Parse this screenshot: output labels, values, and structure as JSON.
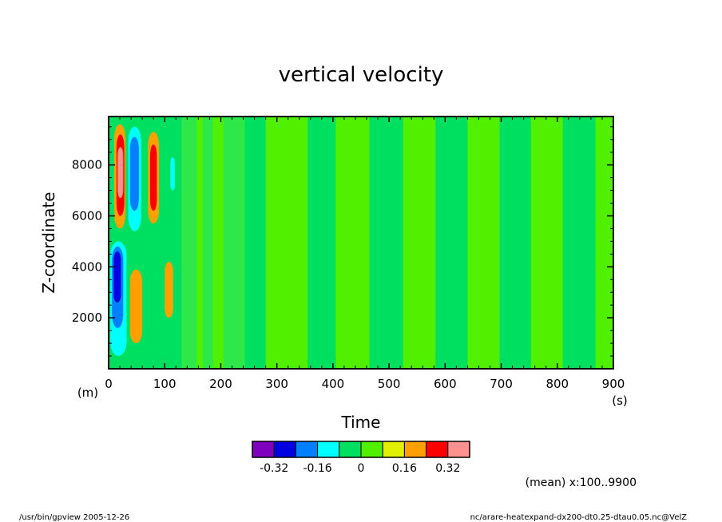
{
  "chart_data": {
    "type": "heatmap",
    "title": "vertical velocity",
    "xlabel": "Time",
    "ylabel": "Z-coordinate",
    "x_unit": "(s)",
    "y_unit": "(m)",
    "xlim": [
      0,
      900
    ],
    "ylim": [
      0,
      9900
    ],
    "x_ticks": [
      0,
      100,
      200,
      300,
      400,
      500,
      600,
      700,
      800,
      900
    ],
    "y_ticks": [
      2000,
      4000,
      6000,
      8000
    ],
    "colorbar": {
      "levels": [
        -0.4,
        -0.32,
        -0.24,
        -0.16,
        -0.08,
        0,
        0.08,
        0.16,
        0.24,
        0.32,
        0.4
      ],
      "labeled_ticks": [
        "-0.32",
        "-0.16",
        "0",
        "0.16",
        "0.32"
      ],
      "colors": [
        "#8000c0",
        "#0000e0",
        "#0080ff",
        "#00ffff",
        "#00e060",
        "#50f000",
        "#e0f000",
        "#ffa000",
        "#ff0000",
        "#ff9090"
      ]
    },
    "x_bands": [
      {
        "x0": 130,
        "x1": 157,
        "color": "#2ee84a"
      },
      {
        "x0": 157,
        "x1": 168,
        "color": "#50f000"
      },
      {
        "x0": 168,
        "x1": 186,
        "color": "#2ee84a"
      },
      {
        "x0": 186,
        "x1": 205,
        "color": "#50f000"
      },
      {
        "x0": 205,
        "x1": 243,
        "color": "#2ee84a"
      },
      {
        "x0": 243,
        "x1": 280,
        "color": "#00e060"
      },
      {
        "x0": 280,
        "x1": 355,
        "color": "#50f000"
      },
      {
        "x0": 355,
        "x1": 405,
        "color": "#00e060"
      },
      {
        "x0": 405,
        "x1": 465,
        "color": "#50f000"
      },
      {
        "x0": 465,
        "x1": 525,
        "color": "#00e060"
      },
      {
        "x0": 525,
        "x1": 583,
        "color": "#50f000"
      },
      {
        "x0": 583,
        "x1": 640,
        "color": "#00e060"
      },
      {
        "x0": 640,
        "x1": 697,
        "color": "#50f000"
      },
      {
        "x0": 697,
        "x1": 753,
        "color": "#00e060"
      },
      {
        "x0": 753,
        "x1": 810,
        "color": "#50f000"
      },
      {
        "x0": 810,
        "x1": 868,
        "color": "#00e060"
      },
      {
        "x0": 868,
        "x1": 900,
        "color": "#50f000"
      }
    ],
    "cells": [
      {
        "t0": 10,
        "t1": 30,
        "z0": 5500,
        "z1": 9600,
        "value": 0.16
      },
      {
        "t0": 14,
        "t1": 28,
        "z0": 6000,
        "z1": 9200,
        "value": 0.24
      },
      {
        "t0": 16,
        "t1": 26,
        "z0": 6700,
        "z1": 8700,
        "value": 0.32
      },
      {
        "t0": 35,
        "t1": 58,
        "z0": 5400,
        "z1": 9500,
        "value": -0.16
      },
      {
        "t0": 38,
        "t1": 54,
        "z0": 6200,
        "z1": 9100,
        "value": -0.24
      },
      {
        "t0": 70,
        "t1": 90,
        "z0": 5700,
        "z1": 9300,
        "value": 0.16
      },
      {
        "t0": 74,
        "t1": 86,
        "z0": 6200,
        "z1": 8800,
        "value": 0.24
      },
      {
        "t0": 3,
        "t1": 32,
        "z0": 500,
        "z1": 5000,
        "value": -0.16
      },
      {
        "t0": 6,
        "t1": 26,
        "z0": 1600,
        "z1": 4800,
        "value": -0.24
      },
      {
        "t0": 9,
        "t1": 22,
        "z0": 2600,
        "z1": 4600,
        "value": -0.32
      },
      {
        "t0": 38,
        "t1": 60,
        "z0": 1000,
        "z1": 3900,
        "value": 0.16
      },
      {
        "t0": 100,
        "t1": 115,
        "z0": 2000,
        "z1": 4200,
        "value": 0.16
      },
      {
        "t0": 110,
        "t1": 118,
        "z0": 7000,
        "z1": 8300,
        "value": -0.16
      }
    ]
  },
  "footer": {
    "mean_note": "(mean) x:100..9900",
    "left": "/usr/bin/gpview   2005-12-26",
    "right": "nc/arare-heatexpand-dx200-dt0.25-dtau0.05.nc@VelZ"
  }
}
